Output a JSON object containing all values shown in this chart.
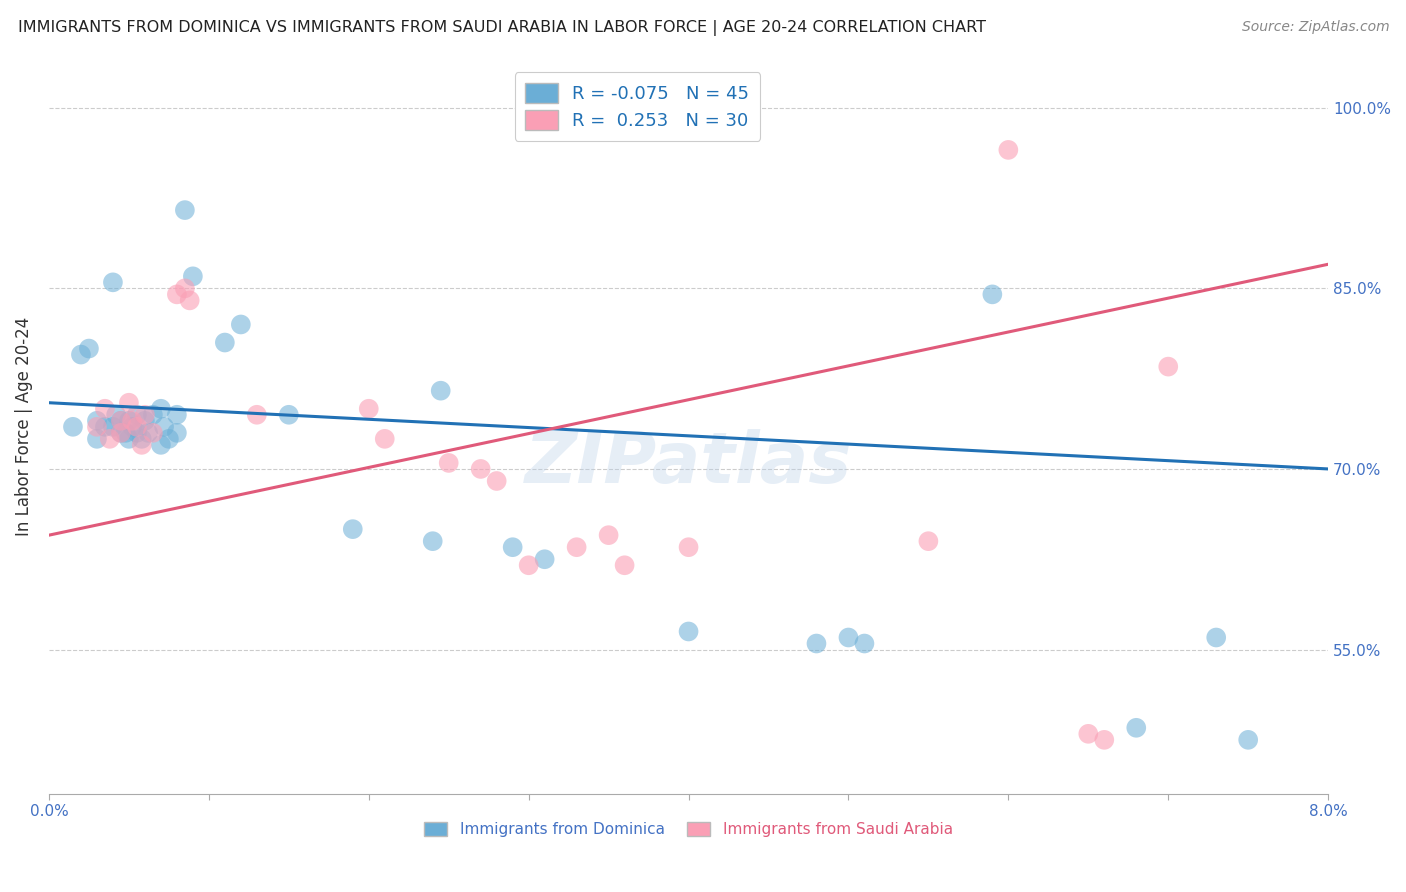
{
  "title": "IMMIGRANTS FROM DOMINICA VS IMMIGRANTS FROM SAUDI ARABIA IN LABOR FORCE | AGE 20-24 CORRELATION CHART",
  "source": "Source: ZipAtlas.com",
  "xlabel_bottom": "Immigrants from Dominica",
  "xlabel_bottom2": "Immigrants from Saudi Arabia",
  "ylabel": "In Labor Force | Age 20-24",
  "xlim": [
    0.0,
    8.0
  ],
  "ylim": [
    43.0,
    104.0
  ],
  "ytick_labels": [
    "55.0%",
    "70.0%",
    "85.0%",
    "100.0%"
  ],
  "ytick_values": [
    55.0,
    70.0,
    85.0,
    100.0
  ],
  "legend_r1": "R = -0.075",
  "legend_n1": "N = 45",
  "legend_r2": "R =  0.253",
  "legend_n2": "N = 30",
  "blue_color": "#6baed6",
  "pink_color": "#fa9fb5",
  "blue_line_color": "#2171b5",
  "pink_line_color": "#e05a7a",
  "watermark": "ZIPatlas",
  "blue_line": [
    [
      0.0,
      75.5
    ],
    [
      8.0,
      70.0
    ]
  ],
  "pink_line": [
    [
      0.0,
      64.5
    ],
    [
      8.0,
      87.0
    ]
  ],
  "blue_dots": [
    [
      0.15,
      73.5
    ],
    [
      0.2,
      79.5
    ],
    [
      0.25,
      80.0
    ],
    [
      0.3,
      74.0
    ],
    [
      0.3,
      72.5
    ],
    [
      0.35,
      73.5
    ],
    [
      0.4,
      85.5
    ],
    [
      0.4,
      73.5
    ],
    [
      0.42,
      74.5
    ],
    [
      0.45,
      73.0
    ],
    [
      0.45,
      74.0
    ],
    [
      0.48,
      73.0
    ],
    [
      0.5,
      72.5
    ],
    [
      0.5,
      74.0
    ],
    [
      0.52,
      73.5
    ],
    [
      0.55,
      73.0
    ],
    [
      0.55,
      74.5
    ],
    [
      0.58,
      72.5
    ],
    [
      0.6,
      74.0
    ],
    [
      0.62,
      73.0
    ],
    [
      0.65,
      74.5
    ],
    [
      0.7,
      72.0
    ],
    [
      0.7,
      75.0
    ],
    [
      0.72,
      73.5
    ],
    [
      0.75,
      72.5
    ],
    [
      0.8,
      73.0
    ],
    [
      0.8,
      74.5
    ],
    [
      0.85,
      91.5
    ],
    [
      0.9,
      86.0
    ],
    [
      1.1,
      80.5
    ],
    [
      1.2,
      82.0
    ],
    [
      1.5,
      74.5
    ],
    [
      1.9,
      65.0
    ],
    [
      2.4,
      64.0
    ],
    [
      2.45,
      76.5
    ],
    [
      2.9,
      63.5
    ],
    [
      3.1,
      62.5
    ],
    [
      4.0,
      56.5
    ],
    [
      4.8,
      55.5
    ],
    [
      5.0,
      56.0
    ],
    [
      5.1,
      55.5
    ],
    [
      5.9,
      84.5
    ],
    [
      6.8,
      48.5
    ],
    [
      7.3,
      56.0
    ],
    [
      7.5,
      47.5
    ]
  ],
  "pink_dots": [
    [
      0.3,
      73.5
    ],
    [
      0.35,
      75.0
    ],
    [
      0.38,
      72.5
    ],
    [
      0.45,
      74.0
    ],
    [
      0.45,
      73.0
    ],
    [
      0.5,
      75.5
    ],
    [
      0.52,
      74.0
    ],
    [
      0.55,
      73.5
    ],
    [
      0.58,
      72.0
    ],
    [
      0.6,
      74.5
    ],
    [
      0.65,
      73.0
    ],
    [
      0.8,
      84.5
    ],
    [
      0.85,
      85.0
    ],
    [
      0.88,
      84.0
    ],
    [
      1.3,
      74.5
    ],
    [
      2.0,
      75.0
    ],
    [
      2.1,
      72.5
    ],
    [
      2.5,
      70.5
    ],
    [
      2.7,
      70.0
    ],
    [
      2.8,
      69.0
    ],
    [
      3.0,
      62.0
    ],
    [
      3.3,
      63.5
    ],
    [
      3.5,
      64.5
    ],
    [
      3.6,
      62.0
    ],
    [
      4.0,
      63.5
    ],
    [
      5.5,
      64.0
    ],
    [
      6.0,
      96.5
    ],
    [
      6.5,
      48.0
    ],
    [
      6.6,
      47.5
    ],
    [
      7.0,
      78.5
    ]
  ]
}
